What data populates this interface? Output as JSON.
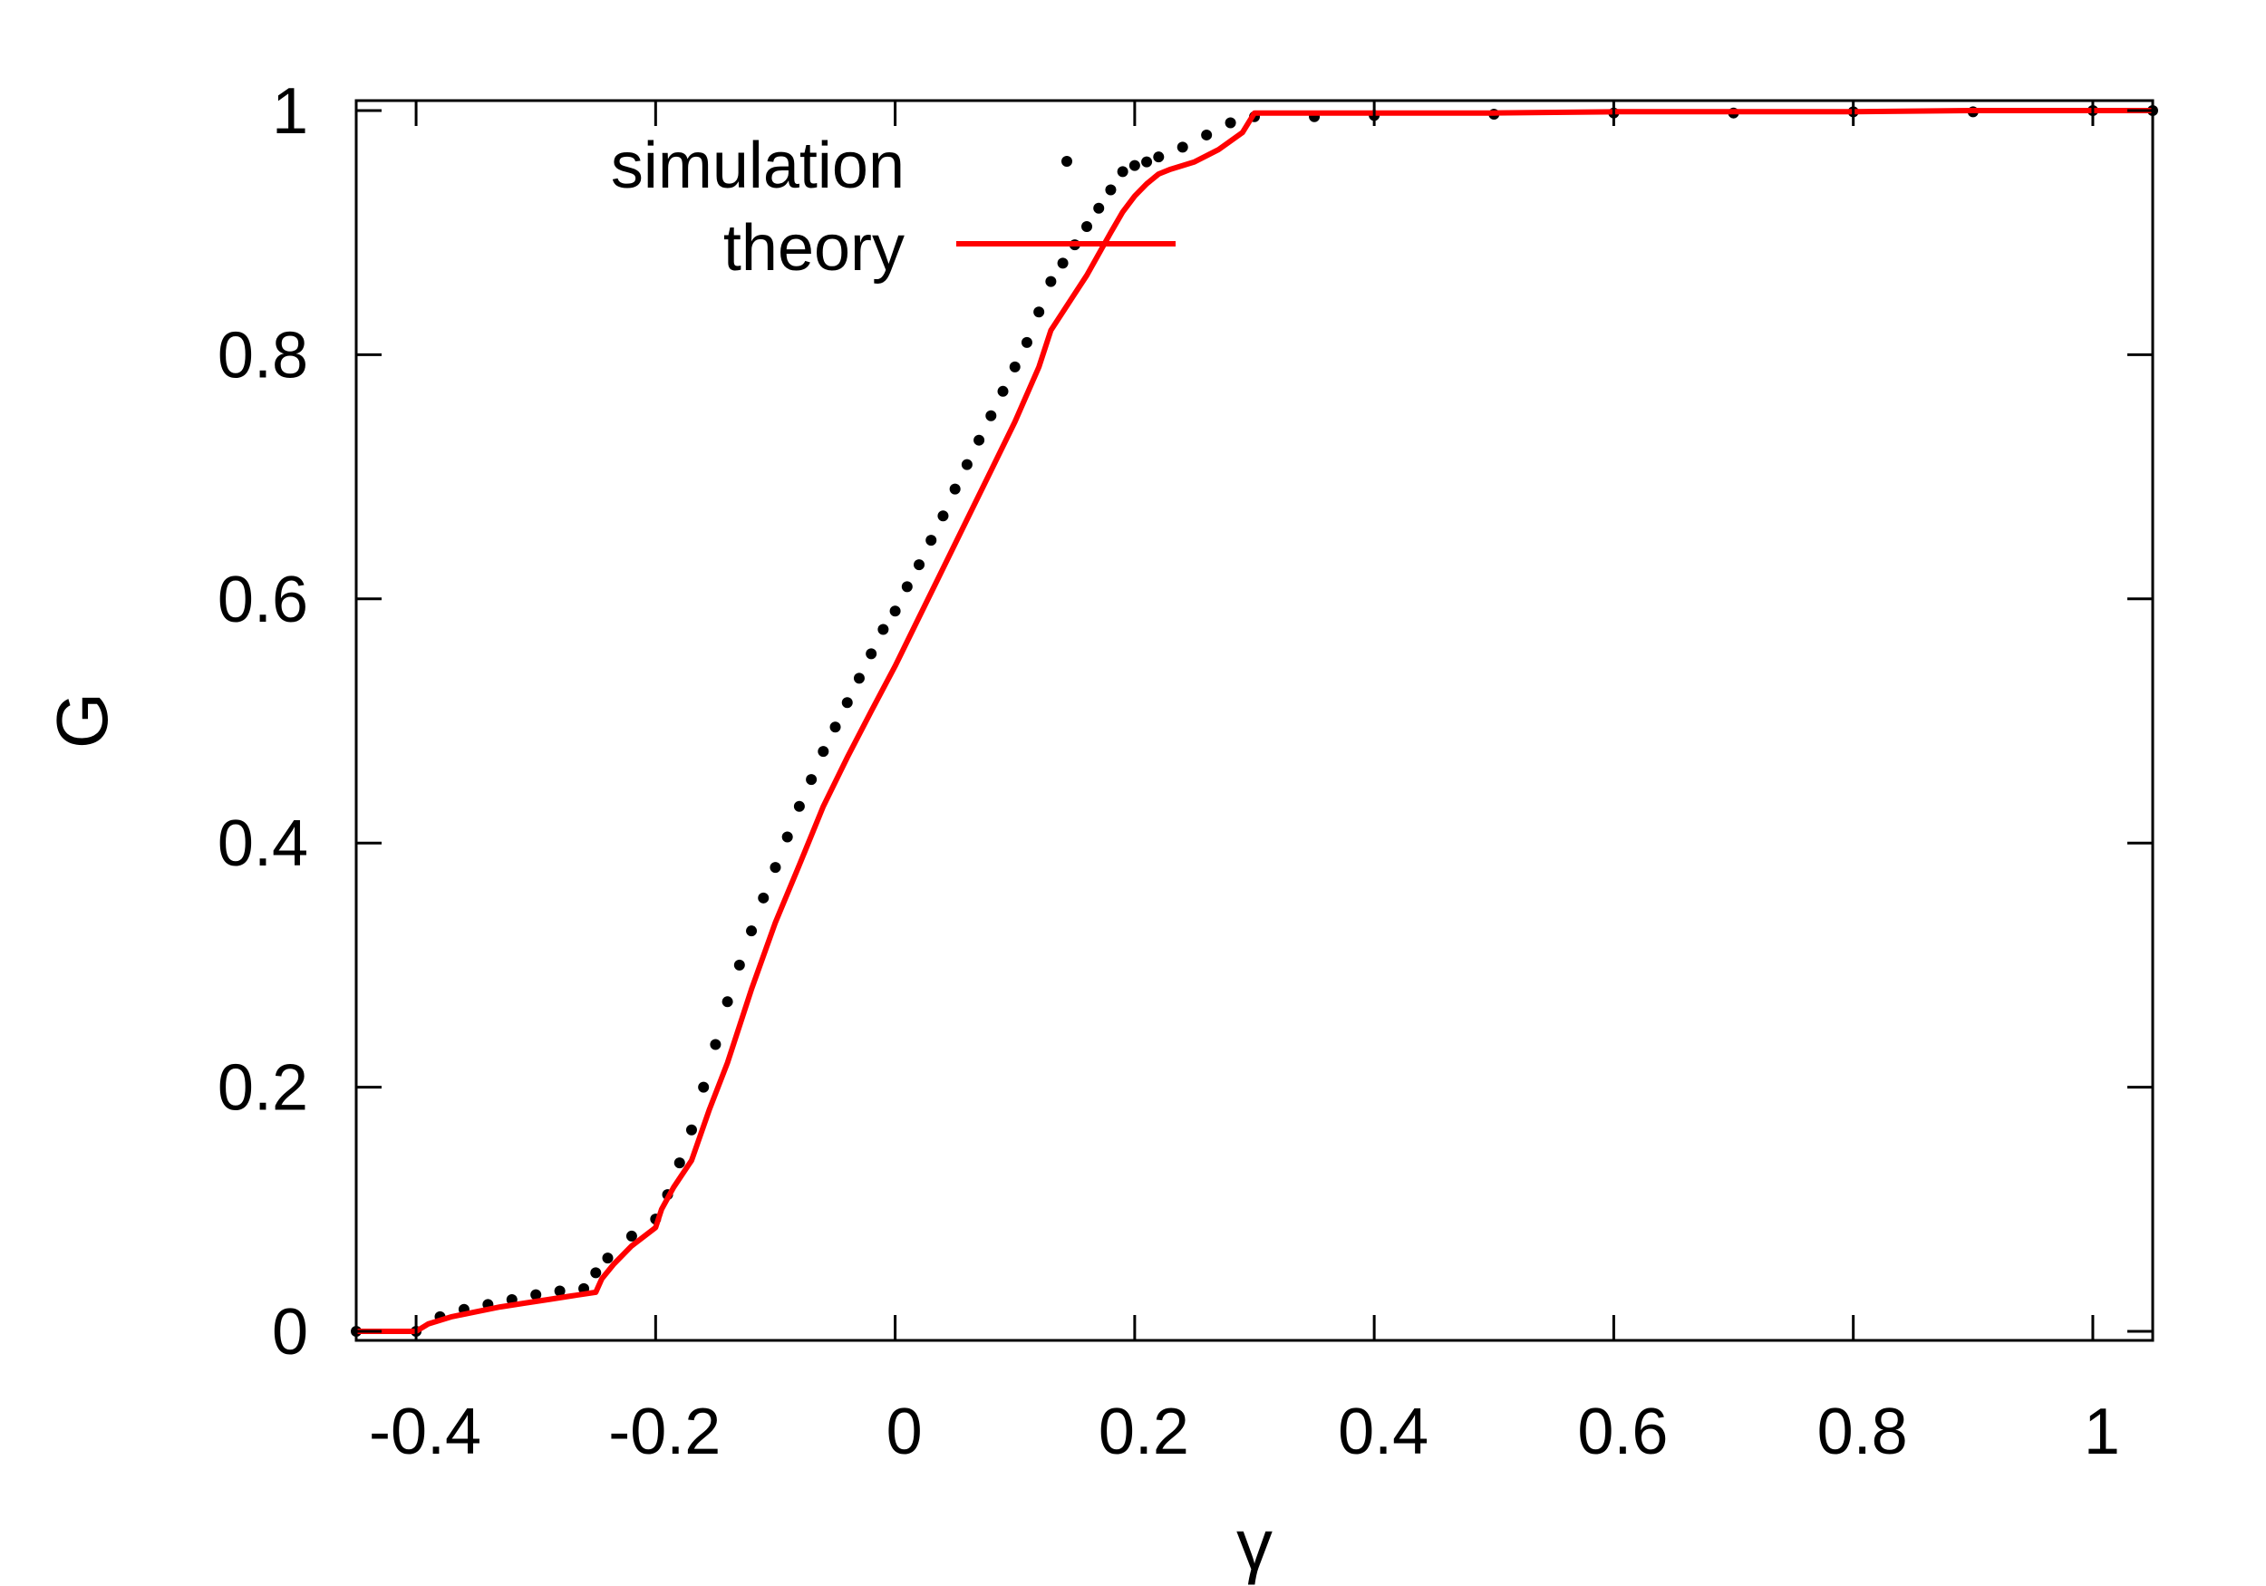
{
  "chart_data": {
    "type": "scatter",
    "title": "",
    "xlabel": "γ",
    "ylabel": "G",
    "xlim": [
      -0.45,
      1.05
    ],
    "ylim": [
      -0.01,
      1.0
    ],
    "xticks": [
      -0.4,
      -0.2,
      0,
      0.2,
      0.4,
      0.6,
      0.8,
      1
    ],
    "xtick_labels": [
      "-0.4",
      "-0.2",
      "0",
      "0.2",
      "0.4",
      "0.6",
      "0.8",
      "1"
    ],
    "yticks": [
      0,
      0.2,
      0.4,
      0.6,
      0.8,
      1
    ],
    "ytick_labels": [
      "0",
      "0.2",
      "0.4",
      "0.6",
      "0.8",
      "1"
    ],
    "grid": false,
    "legend_position": "top-left",
    "series": [
      {
        "name": "simulation",
        "kind": "points",
        "color": "#000000",
        "x": [
          -0.45,
          -0.4,
          -0.38,
          -0.36,
          -0.34,
          -0.32,
          -0.3,
          -0.28,
          -0.26,
          -0.25,
          -0.24,
          -0.22,
          -0.2,
          -0.19,
          -0.18,
          -0.17,
          -0.16,
          -0.15,
          -0.14,
          -0.13,
          -0.12,
          -0.11,
          -0.1,
          -0.09,
          -0.08,
          -0.07,
          -0.06,
          -0.05,
          -0.04,
          -0.03,
          -0.02,
          -0.01,
          0,
          0.01,
          0.02,
          0.03,
          0.04,
          0.05,
          0.06,
          0.07,
          0.08,
          0.09,
          0.1,
          0.11,
          0.12,
          0.13,
          0.14,
          0.15,
          0.16,
          0.17,
          0.18,
          0.19,
          0.2,
          0.21,
          0.22,
          0.24,
          0.26,
          0.28,
          0.3,
          0.35,
          0.4,
          0.5,
          0.6,
          0.7,
          0.8,
          0.9,
          1.0,
          1.05
        ],
        "y": [
          0,
          0,
          0.012,
          0.018,
          0.022,
          0.026,
          0.03,
          0.033,
          0.035,
          0.048,
          0.06,
          0.078,
          0.092,
          0.112,
          0.138,
          0.165,
          0.2,
          0.235,
          0.27,
          0.3,
          0.328,
          0.355,
          0.38,
          0.405,
          0.43,
          0.452,
          0.475,
          0.495,
          0.515,
          0.535,
          0.555,
          0.575,
          0.59,
          0.61,
          0.628,
          0.648,
          0.668,
          0.69,
          0.71,
          0.73,
          0.75,
          0.77,
          0.79,
          0.81,
          0.835,
          0.86,
          0.875,
          0.89,
          0.905,
          0.92,
          0.935,
          0.95,
          0.955,
          0.958,
          0.962,
          0.97,
          0.98,
          0.99,
          0.995,
          0.995,
          0.996,
          0.997,
          0.998,
          0.998,
          0.999,
          0.999,
          1.0,
          1.0
        ]
      },
      {
        "name": "theory",
        "kind": "line",
        "color": "#ff0000",
        "x": [
          -0.45,
          -0.4,
          -0.39,
          -0.37,
          -0.35,
          -0.33,
          -0.31,
          -0.29,
          -0.27,
          -0.25,
          -0.245,
          -0.235,
          -0.22,
          -0.2,
          -0.195,
          -0.185,
          -0.17,
          -0.155,
          -0.14,
          -0.12,
          -0.1,
          -0.08,
          -0.06,
          -0.04,
          -0.02,
          0,
          0.02,
          0.04,
          0.06,
          0.08,
          0.1,
          0.12,
          0.13,
          0.15,
          0.16,
          0.18,
          0.19,
          0.2,
          0.21,
          0.22,
          0.23,
          0.25,
          0.27,
          0.29,
          0.3,
          0.4,
          0.5,
          0.6,
          0.7,
          0.8,
          0.9,
          1.0,
          1.05
        ],
        "y": [
          0,
          0,
          0.006,
          0.012,
          0.016,
          0.02,
          0.023,
          0.026,
          0.029,
          0.032,
          0.043,
          0.055,
          0.07,
          0.085,
          0.1,
          0.118,
          0.14,
          0.182,
          0.22,
          0.28,
          0.335,
          0.382,
          0.43,
          0.47,
          0.508,
          0.545,
          0.585,
          0.625,
          0.665,
          0.705,
          0.745,
          0.79,
          0.82,
          0.85,
          0.865,
          0.9,
          0.917,
          0.93,
          0.94,
          0.948,
          0.952,
          0.958,
          0.968,
          0.982,
          0.998,
          0.998,
          0.998,
          0.999,
          0.999,
          0.999,
          1.0,
          1.0,
          1.0
        ]
      }
    ]
  }
}
